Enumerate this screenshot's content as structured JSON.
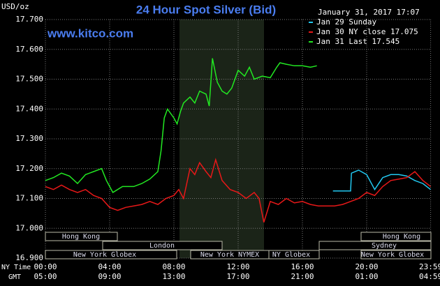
{
  "chart_data": {
    "type": "line",
    "title": "24 Hour Spot Silver (Bid)",
    "unit_label": "USD/oz",
    "timestamp": "January 31, 2017 17:07",
    "website": "www.kitco.com",
    "x_row_labels": [
      "NY Time",
      "GMT"
    ],
    "xlim": [
      0,
      24
    ],
    "xticks": [
      {
        "value": 0,
        "label": "00:00"
      },
      {
        "value": 4,
        "label": "04:00"
      },
      {
        "value": 8,
        "label": "08:00"
      },
      {
        "value": 12,
        "label": "12:00"
      },
      {
        "value": 16,
        "label": "16:00"
      },
      {
        "value": 20,
        "label": "20:00"
      },
      {
        "value": 23.983,
        "label": "23:59"
      }
    ],
    "gmt_labels": [
      "05:00",
      "09:00",
      "13:00",
      "17:00",
      "21:00",
      "01:00",
      "04:59"
    ],
    "ylim": [
      16.9,
      17.7
    ],
    "yticks": [
      {
        "value": 16.9,
        "label": "16.900"
      },
      {
        "value": 17.0,
        "label": "17.000"
      },
      {
        "value": 17.1,
        "label": "17.100"
      },
      {
        "value": 17.2,
        "label": "17.200"
      },
      {
        "value": 17.3,
        "label": "17.300"
      },
      {
        "value": 17.4,
        "label": "17.400"
      },
      {
        "value": 17.5,
        "label": "17.500"
      },
      {
        "value": 17.6,
        "label": "17.600"
      },
      {
        "value": 17.7,
        "label": "17.700"
      }
    ],
    "grid": true,
    "markets": [
      "Hong Kong",
      "London",
      "New York Globex",
      "New York NYMEX",
      "NY Globex",
      "Sydney",
      "Hong Kong",
      "New York Globex"
    ],
    "series": [
      {
        "name": "Jan 29 Sunday",
        "color": "#22c8f0",
        "x": [
          17.9,
          19.0,
          19.05,
          19.5,
          20,
          20.5,
          21,
          21.5,
          22,
          22.5,
          23,
          23.5,
          23.98
        ],
        "values": [
          17.125,
          17.125,
          17.185,
          17.195,
          17.18,
          17.13,
          17.17,
          17.18,
          17.18,
          17.175,
          17.16,
          17.15,
          17.13
        ]
      },
      {
        "name": "Jan 30 NY close 17.075",
        "color": "#e81818",
        "x": [
          0,
          0.5,
          1,
          1.5,
          2,
          2.5,
          3,
          3.5,
          4,
          4.5,
          5,
          5.5,
          6,
          6.5,
          7,
          7.5,
          8,
          8.3,
          8.6,
          9,
          9.3,
          9.6,
          10,
          10.3,
          10.6,
          11,
          11.5,
          12,
          12.5,
          13,
          13.3,
          13.6,
          14,
          14.5,
          15,
          15.5,
          16,
          16.5,
          17,
          17.5,
          18,
          18.5,
          19,
          19.5,
          20,
          20.5,
          21,
          21.5,
          22,
          22.5,
          23,
          23.5,
          23.98
        ],
        "values": [
          17.14,
          17.13,
          17.145,
          17.13,
          17.12,
          17.13,
          17.11,
          17.1,
          17.07,
          17.06,
          17.07,
          17.075,
          17.08,
          17.09,
          17.08,
          17.1,
          17.11,
          17.13,
          17.1,
          17.2,
          17.18,
          17.22,
          17.19,
          17.17,
          17.23,
          17.16,
          17.13,
          17.12,
          17.1,
          17.12,
          17.1,
          17.02,
          17.09,
          17.08,
          17.1,
          17.085,
          17.09,
          17.08,
          17.075,
          17.075,
          17.075,
          17.08,
          17.09,
          17.1,
          17.12,
          17.11,
          17.14,
          17.16,
          17.165,
          17.17,
          17.19,
          17.16,
          17.14
        ]
      },
      {
        "name": "Jan 31 Last 17.545",
        "color": "#22e822",
        "x": [
          0,
          0.5,
          1,
          1.5,
          2,
          2.5,
          3,
          3.5,
          3.8,
          4.2,
          4.8,
          5.5,
          6,
          6.5,
          7,
          7.2,
          7.4,
          7.6,
          8,
          8.2,
          8.4,
          8.6,
          9,
          9.3,
          9.6,
          10,
          10.2,
          10.4,
          10.7,
          11,
          11.3,
          11.6,
          12,
          12.4,
          12.7,
          13,
          13.5,
          14,
          14.4,
          14.6,
          15,
          15.5,
          16,
          16.5,
          16.9
        ],
        "values": [
          17.16,
          17.17,
          17.185,
          17.175,
          17.15,
          17.18,
          17.19,
          17.2,
          17.16,
          17.12,
          17.14,
          17.14,
          17.15,
          17.165,
          17.19,
          17.26,
          17.37,
          17.4,
          17.37,
          17.35,
          17.39,
          17.42,
          17.44,
          17.42,
          17.46,
          17.45,
          17.41,
          17.57,
          17.49,
          17.46,
          17.45,
          17.47,
          17.53,
          17.51,
          17.54,
          17.5,
          17.51,
          17.505,
          17.54,
          17.555,
          17.55,
          17.545,
          17.545,
          17.54,
          17.545
        ]
      }
    ]
  }
}
